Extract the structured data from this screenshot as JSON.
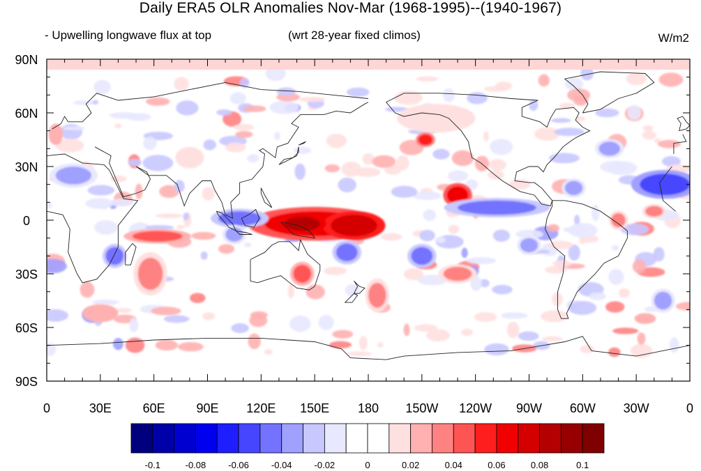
{
  "title": "Daily ERA5 OLR Anomalies Nov-Mar (1968-1995)--(1940-1967)",
  "subtitle_left": "- Upwelling longwave flux at top",
  "subtitle_center": "(wrt 28-year fixed climos)",
  "units": "W/m2",
  "map": {
    "projection": "cylindrical-equidistant",
    "lon_range": [
      0,
      360
    ],
    "lat_range": [
      -90,
      90
    ],
    "x_tick_labels": [
      "0",
      "30E",
      "60E",
      "90E",
      "120E",
      "150E",
      "180",
      "150W",
      "120W",
      "90W",
      "60W",
      "30W",
      "0"
    ],
    "y_tick_labels": [
      "90N",
      "60N",
      "30N",
      "0",
      "30S",
      "60S",
      "90S"
    ],
    "anomaly_features": [
      {
        "lon": 150,
        "lat": -2,
        "rx": 28,
        "ry": 7,
        "level": 6
      },
      {
        "lon": 172,
        "lat": -3,
        "rx": 13,
        "ry": 6,
        "level": 7
      },
      {
        "lon": 143,
        "lat": -2,
        "rx": 10,
        "ry": 4,
        "level": 8
      },
      {
        "lon": 230,
        "lat": 14,
        "rx": 6,
        "ry": 5,
        "level": 6
      },
      {
        "lon": 212,
        "lat": 45,
        "rx": 4,
        "ry": 3,
        "level": 5
      },
      {
        "lon": 108,
        "lat": 1,
        "rx": 12,
        "ry": 4,
        "level": -4
      },
      {
        "lon": 252,
        "lat": 7,
        "rx": 22,
        "ry": 4,
        "level": -4
      },
      {
        "lon": 346,
        "lat": 20,
        "rx": 14,
        "ry": 6,
        "level": -5
      },
      {
        "lon": 15,
        "lat": 25,
        "rx": 10,
        "ry": 5,
        "level": -3
      },
      {
        "lon": 62,
        "lat": -9,
        "rx": 14,
        "ry": 3,
        "level": 4
      },
      {
        "lon": 38,
        "lat": -20,
        "rx": 5,
        "ry": 5,
        "level": -4
      },
      {
        "lon": 58,
        "lat": -30,
        "rx": 7,
        "ry": 9,
        "level": 3
      },
      {
        "lon": 168,
        "lat": -18,
        "rx": 6,
        "ry": 5,
        "level": -4
      },
      {
        "lon": 210,
        "lat": -20,
        "rx": 6,
        "ry": 5,
        "level": -4
      },
      {
        "lon": 230,
        "lat": -30,
        "rx": 8,
        "ry": 4,
        "level": 3
      },
      {
        "lon": 185,
        "lat": -42,
        "rx": 5,
        "ry": 7,
        "level": 3
      },
      {
        "lon": 143,
        "lat": -30,
        "rx": 5,
        "ry": 5,
        "level": 4
      },
      {
        "lon": 218,
        "lat": 57,
        "rx": 22,
        "ry": 8,
        "level": 1
      },
      {
        "lon": 315,
        "lat": 40,
        "rx": 6,
        "ry": 4,
        "level": -3
      },
      {
        "lon": 295,
        "lat": 18,
        "rx": 5,
        "ry": 4,
        "level": -3
      },
      {
        "lon": 270,
        "lat": -14,
        "rx": 5,
        "ry": 4,
        "level": -3
      },
      {
        "lon": 345,
        "lat": -45,
        "rx": 5,
        "ry": 5,
        "level": -3
      },
      {
        "lon": 30,
        "lat": -52,
        "rx": 10,
        "ry": 5,
        "level": 2
      },
      {
        "lon": 335,
        "lat": -55,
        "rx": 6,
        "ry": 3,
        "level": 2
      },
      {
        "lon": 5,
        "lat": 48,
        "rx": 4,
        "ry": 6,
        "level": 2
      },
      {
        "lon": 80,
        "lat": 35,
        "rx": 8,
        "ry": 6,
        "level": 1
      },
      {
        "lon": 105,
        "lat": -8,
        "rx": 5,
        "ry": 4,
        "level": -3
      },
      {
        "lon": 320,
        "lat": 0,
        "rx": 4,
        "ry": 4,
        "level": 3
      },
      {
        "lon": 340,
        "lat": 5,
        "rx": 5,
        "ry": 3,
        "level": 3
      }
    ]
  },
  "colorbar": {
    "colors": [
      "#00007f",
      "#0000a8",
      "#0000d0",
      "#0000f0",
      "#1e1eff",
      "#4646ff",
      "#7373ff",
      "#a0a0ff",
      "#c8c8ff",
      "#e8e8ff",
      "#ffffff",
      "#ffffff",
      "#ffe0e0",
      "#ffb0b0",
      "#ff8282",
      "#ff5454",
      "#ff1e1e",
      "#f00000",
      "#d40000",
      "#b40000",
      "#960000",
      "#7f0000"
    ],
    "labels": [
      "-0.1",
      "-0.08",
      "-0.06",
      "-0.04",
      "-0.02",
      "0",
      "0.02",
      "0.04",
      "0.06",
      "0.08",
      "0.1"
    ]
  }
}
